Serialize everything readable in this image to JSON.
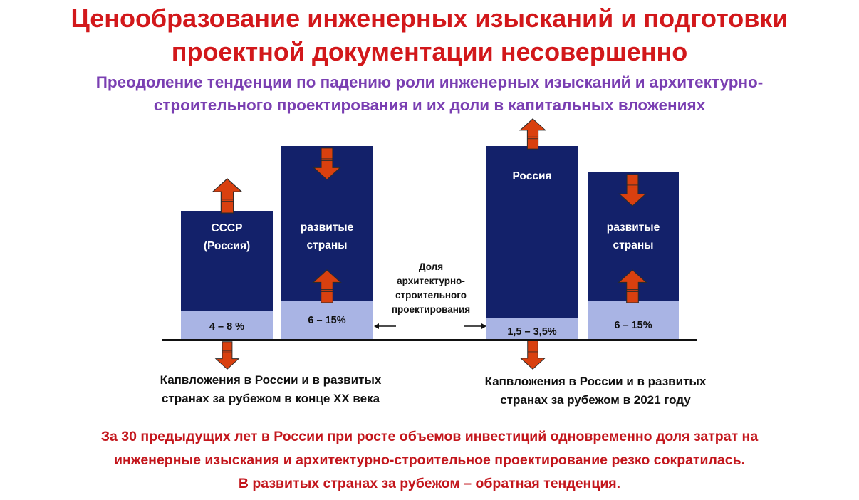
{
  "title": {
    "lines": [
      "Ценообразование инженерных изысканий и подготовки",
      "проектной документации несовершенно"
    ]
  },
  "subtitle": {
    "lines": [
      "Преодоление тенденции по падению роли  инженерных изысканий и архитектурно-",
      "строительного проектирования и их доли в капитальных вложениях"
    ]
  },
  "bars": [
    {
      "label_lines": [
        "СССР",
        "(Россия)"
      ],
      "share_label": "4 – 8 %",
      "trend": "up"
    },
    {
      "label_lines": [
        "развитые",
        "страны"
      ],
      "share_label": "6 – 15%",
      "trend": "down"
    },
    {
      "label_lines": [
        "Россия"
      ],
      "share_label": "1,5 – 3,5%",
      "trend": "up"
    },
    {
      "label_lines": [
        "развитые",
        "страны"
      ],
      "share_label": "6 – 15%",
      "trend": "down"
    }
  ],
  "center_note": {
    "lines": [
      "Доля",
      "архитектурно-",
      "строительного",
      "проектирования"
    ]
  },
  "captions": [
    {
      "lines": [
        "Капвложения в России и в развитых",
        "странах за рубежом в конце XX века"
      ]
    },
    {
      "lines": [
        "Капвложения в России и в развитых",
        "странах за рубежом в 2021 году"
      ]
    }
  ],
  "footer": {
    "lines": [
      "За 30 предыдущих лет в России при росте объемов инвестиций одновременно доля затрат на",
      "инженерные изыскания и архитектурно-строительное проектирование резко сократилась.",
      "В развитых странах за рубежом – обратная тенденция."
    ]
  },
  "colors": {
    "bar_fill": "#13216a",
    "share_fill": "#a9b4e4",
    "arrow_fill": "#d9400f",
    "title": "#d2181b",
    "subtitle": "#7a3fb2",
    "footer": "#c3161c"
  }
}
